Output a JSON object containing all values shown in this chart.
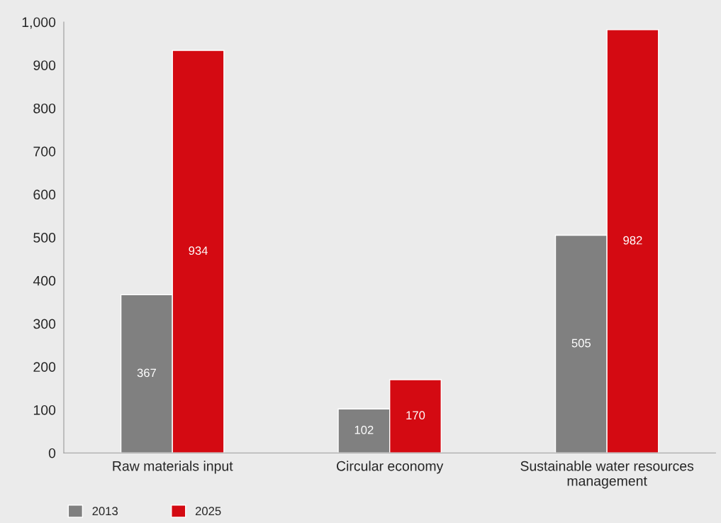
{
  "chart_data": {
    "type": "bar",
    "categories": [
      "Raw materials input",
      "Circular economy",
      "Sustainable water resources\nmanagement"
    ],
    "series": [
      {
        "name": "2013",
        "color": "#808080",
        "values": [
          367,
          102,
          505
        ]
      },
      {
        "name": "2025",
        "color": "#d40a12",
        "values": [
          934,
          170,
          982
        ]
      }
    ],
    "ylim": [
      0,
      1000
    ],
    "yticks": [
      0,
      100,
      200,
      300,
      400,
      500,
      600,
      700,
      800,
      900,
      {
        "value": 1000,
        "label": "1,000"
      }
    ],
    "data_labels": true,
    "grid": false,
    "legend": "bottom left"
  }
}
